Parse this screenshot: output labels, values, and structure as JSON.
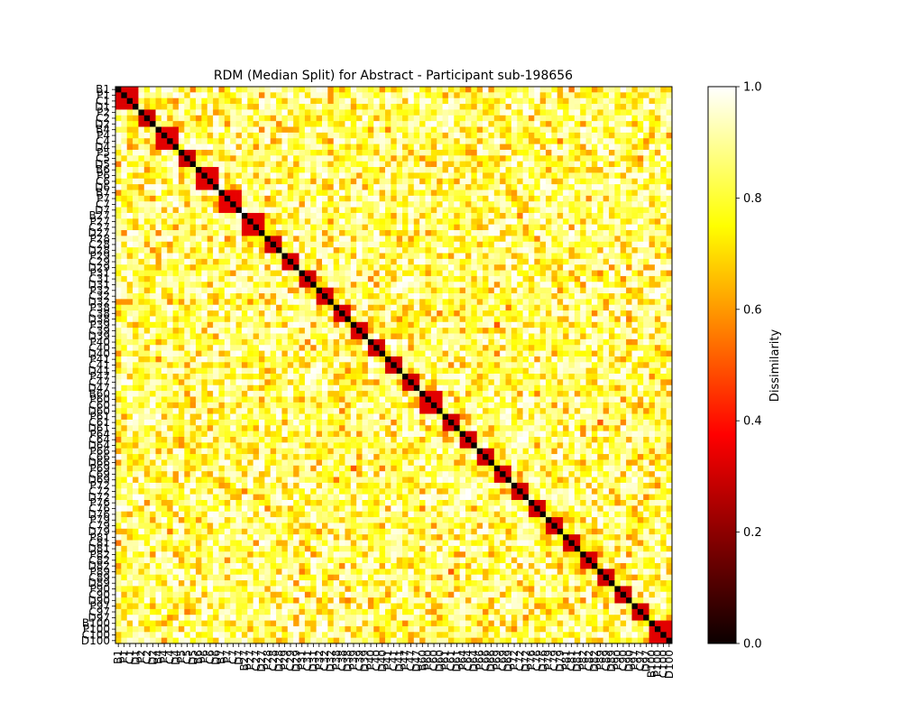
{
  "chart_data": {
    "type": "heatmap",
    "title": "RDM (Median Split) for Abstract - Participant sub-198656",
    "colorbar_label": "Dissimilarity",
    "colormap": "hot",
    "colormap_stops": [
      {
        "v": 0.0,
        "color": "#0b0000"
      },
      {
        "v": 0.375,
        "color": "#ff0000"
      },
      {
        "v": 0.75,
        "color": "#ffff00"
      },
      {
        "v": 1.0,
        "color": "#ffffff"
      }
    ],
    "value_range": [
      0,
      1
    ],
    "colorbar_ticks": [
      "0.0",
      "0.2",
      "0.4",
      "0.6",
      "0.8",
      "1.0"
    ],
    "labels": [
      "B1",
      "P1",
      "C1",
      "D1",
      "P2",
      "C2",
      "D2",
      "B4",
      "P4",
      "C4",
      "D4",
      "P5",
      "C5",
      "D5",
      "B6",
      "P6",
      "C6",
      "D6",
      "B7",
      "P7",
      "C7",
      "D7",
      "B27",
      "P27",
      "C27",
      "D27",
      "P28",
      "C28",
      "D28",
      "P29",
      "C29",
      "D29",
      "P31",
      "C31",
      "D31",
      "P32",
      "C32",
      "D32",
      "P38",
      "C38",
      "D38",
      "P39",
      "C39",
      "D39",
      "P40",
      "C40",
      "D40",
      "P41",
      "C41",
      "D41",
      "P47",
      "C47",
      "D47",
      "B60",
      "P60",
      "C60",
      "D60",
      "P61",
      "C61",
      "D61",
      "P64",
      "C64",
      "D64",
      "P66",
      "C66",
      "D66",
      "P69",
      "C69",
      "D69",
      "P72",
      "C72",
      "D72",
      "P76",
      "C76",
      "D76",
      "P79",
      "C79",
      "D79",
      "P81",
      "C81",
      "D81",
      "P82",
      "C82",
      "D82",
      "P89",
      "C89",
      "D89",
      "P90",
      "C90",
      "D90",
      "P97",
      "C97",
      "D97",
      "B100",
      "P100",
      "C100",
      "D100"
    ],
    "groups": [
      {
        "labels": [
          "B1",
          "P1",
          "C1",
          "D1"
        ],
        "within": 0.32
      },
      {
        "labels": [
          "P2",
          "C2",
          "D2"
        ],
        "within": 0.3
      },
      {
        "labels": [
          "B4",
          "P4",
          "C4",
          "D4"
        ],
        "within": 0.33
      },
      {
        "labels": [
          "P5",
          "C5",
          "D5"
        ],
        "within": 0.3
      },
      {
        "labels": [
          "B6",
          "P6",
          "C6",
          "D6"
        ],
        "within": 0.33
      },
      {
        "labels": [
          "B7",
          "P7",
          "C7",
          "D7"
        ],
        "within": 0.34
      },
      {
        "labels": [
          "B27",
          "P27",
          "C27",
          "D27"
        ],
        "within": 0.33
      },
      {
        "labels": [
          "P28",
          "C28",
          "D28"
        ],
        "within": 0.31
      },
      {
        "labels": [
          "P29",
          "C29",
          "D29"
        ],
        "within": 0.32
      },
      {
        "labels": [
          "P31",
          "C31",
          "D31"
        ],
        "within": 0.31
      },
      {
        "labels": [
          "P32",
          "C32",
          "D32"
        ],
        "within": 0.32
      },
      {
        "labels": [
          "P38",
          "C38",
          "D38"
        ],
        "within": 0.32
      },
      {
        "labels": [
          "P39",
          "C39",
          "D39"
        ],
        "within": 0.32
      },
      {
        "labels": [
          "P40",
          "C40",
          "D40"
        ],
        "within": 0.31
      },
      {
        "labels": [
          "P41",
          "C41",
          "D41"
        ],
        "within": 0.31
      },
      {
        "labels": [
          "P47",
          "C47",
          "D47"
        ],
        "within": 0.31
      },
      {
        "labels": [
          "B60",
          "P60",
          "C60",
          "D60"
        ],
        "within": 0.33
      },
      {
        "labels": [
          "P61",
          "C61",
          "D61"
        ],
        "within": 0.31
      },
      {
        "labels": [
          "P64",
          "C64",
          "D64"
        ],
        "within": 0.31
      },
      {
        "labels": [
          "P66",
          "C66",
          "D66"
        ],
        "within": 0.31
      },
      {
        "labels": [
          "P69",
          "C69",
          "D69"
        ],
        "within": 0.32
      },
      {
        "labels": [
          "P72",
          "C72",
          "D72"
        ],
        "within": 0.31
      },
      {
        "labels": [
          "P76",
          "C76",
          "D76"
        ],
        "within": 0.31
      },
      {
        "labels": [
          "P79",
          "C79",
          "D79"
        ],
        "within": 0.32
      },
      {
        "labels": [
          "P81",
          "C81",
          "D81"
        ],
        "within": 0.31
      },
      {
        "labels": [
          "P82",
          "C82",
          "D82"
        ],
        "within": 0.32
      },
      {
        "labels": [
          "P89",
          "C89",
          "D89"
        ],
        "within": 0.31
      },
      {
        "labels": [
          "P90",
          "C90",
          "D90"
        ],
        "within": 0.31
      },
      {
        "labels": [
          "P97",
          "C97",
          "D97"
        ],
        "within": 0.31
      },
      {
        "labels": [
          "B100",
          "P100",
          "C100",
          "D100"
        ],
        "within": 0.33
      }
    ],
    "diagonal_value": 0.0,
    "off_block_range_estimate": [
      0.55,
      1.0
    ],
    "off_block_notable": [
      {
        "a": "P4",
        "b": "B100",
        "value": 0.6
      },
      {
        "a": "P39",
        "b": "P69",
        "value": 0.5
      },
      {
        "a": "C61",
        "b": "P89",
        "value": 0.5
      },
      {
        "a": "D69",
        "b": "P38",
        "value": 0.55
      },
      {
        "a": "P82",
        "b": "P89",
        "value": 0.55
      },
      {
        "a": "P29",
        "b": "C61",
        "value": 0.6
      },
      {
        "a": "D79",
        "b": "C4",
        "value": 0.55
      },
      {
        "a": "C81",
        "b": "B1",
        "value": 0.55
      }
    ]
  }
}
